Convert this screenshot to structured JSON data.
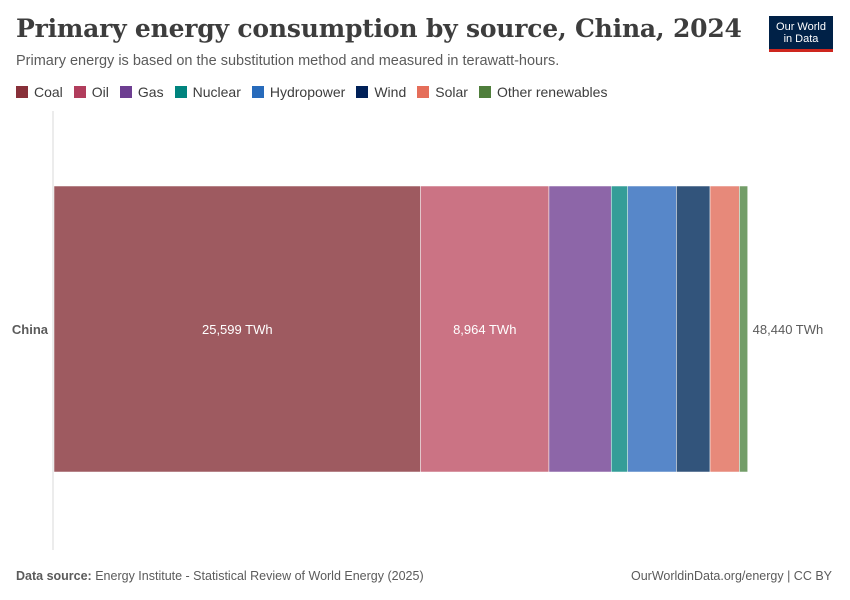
{
  "header": {
    "title": "Primary energy consumption by source, China, 2024",
    "subtitle": "Primary energy is based on the substitution method and measured in terawatt-hours.",
    "logo_line1": "Our World",
    "logo_line2": "in Data"
  },
  "footer": {
    "source_label": "Data source:",
    "source_text": "Energy Institute - Statistical Review of World Energy (2025)",
    "credit": "OurWorldinData.org/energy | CC BY"
  },
  "chart_data": {
    "type": "bar",
    "orientation": "horizontal",
    "stacked": true,
    "categories": [
      "China"
    ],
    "unit": "TWh",
    "total": 48440,
    "total_label": "48,440 TWh",
    "legend_position": "top-left",
    "series": [
      {
        "name": "Coal",
        "color": "#9e5a60",
        "legend_color": "#883039",
        "values": [
          25599
        ],
        "label": "25,599 TWh"
      },
      {
        "name": "Oil",
        "color": "#cb7384",
        "legend_color": "#b13d5c",
        "values": [
          8964
        ],
        "label": "8,964 TWh"
      },
      {
        "name": "Gas",
        "color": "#8d66a8",
        "legend_color": "#6d3e91",
        "values": [
          4350
        ],
        "label": ""
      },
      {
        "name": "Nuclear",
        "color": "#349d98",
        "legend_color": "#00847e",
        "values": [
          1150
        ],
        "label": ""
      },
      {
        "name": "Hydropower",
        "color": "#5787c9",
        "legend_color": "#286bbb",
        "values": [
          3400
        ],
        "label": ""
      },
      {
        "name": "Wind",
        "color": "#32547b",
        "legend_color": "#002158",
        "values": [
          2350
        ],
        "label": ""
      },
      {
        "name": "Solar",
        "color": "#e7897a",
        "legend_color": "#e56e5a",
        "values": [
          2050
        ],
        "label": ""
      },
      {
        "name": "Other renewables",
        "color": "#739d68",
        "legend_color": "#4f7e3c",
        "values": [
          577
        ],
        "label": ""
      }
    ]
  }
}
